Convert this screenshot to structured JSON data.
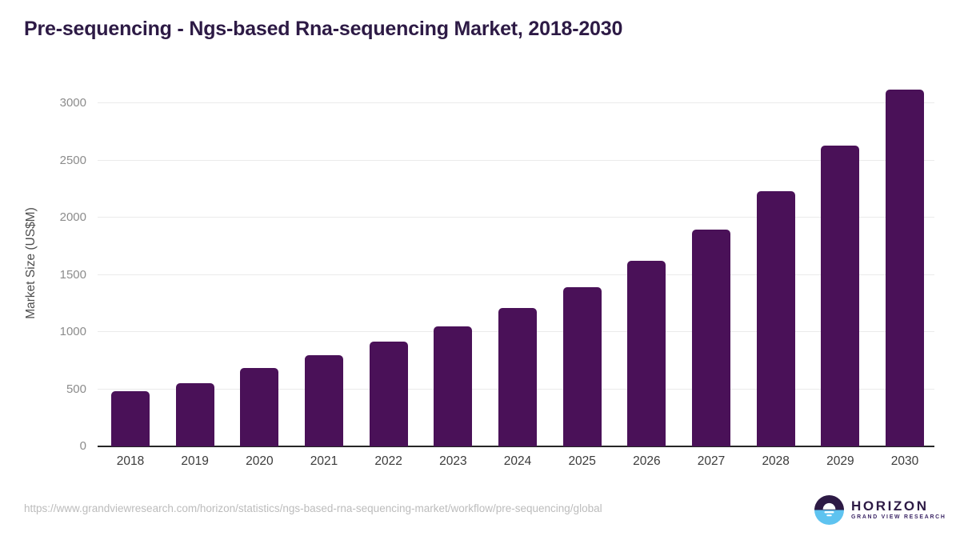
{
  "page": {
    "title": "Pre-sequencing - Ngs-based Rna-sequencing Market, 2018-2030",
    "source_url": "https://www.grandviewresearch.com/horizon/statistics/ngs-based-rna-sequencing-market/workflow/pre-sequencing/global"
  },
  "logo": {
    "brand": "HORIZON",
    "tagline": "GRAND VIEW RESEARCH"
  },
  "chart_data": {
    "type": "bar",
    "title": "Pre-sequencing - Ngs-based Rna-sequencing Market, 2018-2030",
    "xlabel": "",
    "ylabel": "Market Size (US$M)",
    "categories": [
      "2018",
      "2019",
      "2020",
      "2021",
      "2022",
      "2023",
      "2024",
      "2025",
      "2026",
      "2027",
      "2028",
      "2029",
      "2030"
    ],
    "values": [
      480,
      550,
      685,
      800,
      915,
      1050,
      1210,
      1395,
      1625,
      1895,
      2230,
      2630,
      3120
    ],
    "yticks": [
      0,
      500,
      1000,
      1500,
      2000,
      2500,
      3000
    ],
    "ylim": [
      0,
      3200
    ],
    "grid": true,
    "legend_position": "none",
    "bar_color": "#4a1158",
    "gridline_color": "#ebebeb",
    "axis_line_color": "#262626",
    "ytick_label_color": "#8c8c8c",
    "xtick_label_color": "#3b3b3b",
    "title_color": "#2d1a45",
    "logo_dark_color": "#2d1a45",
    "logo_blue_color": "#5ec3f0"
  }
}
